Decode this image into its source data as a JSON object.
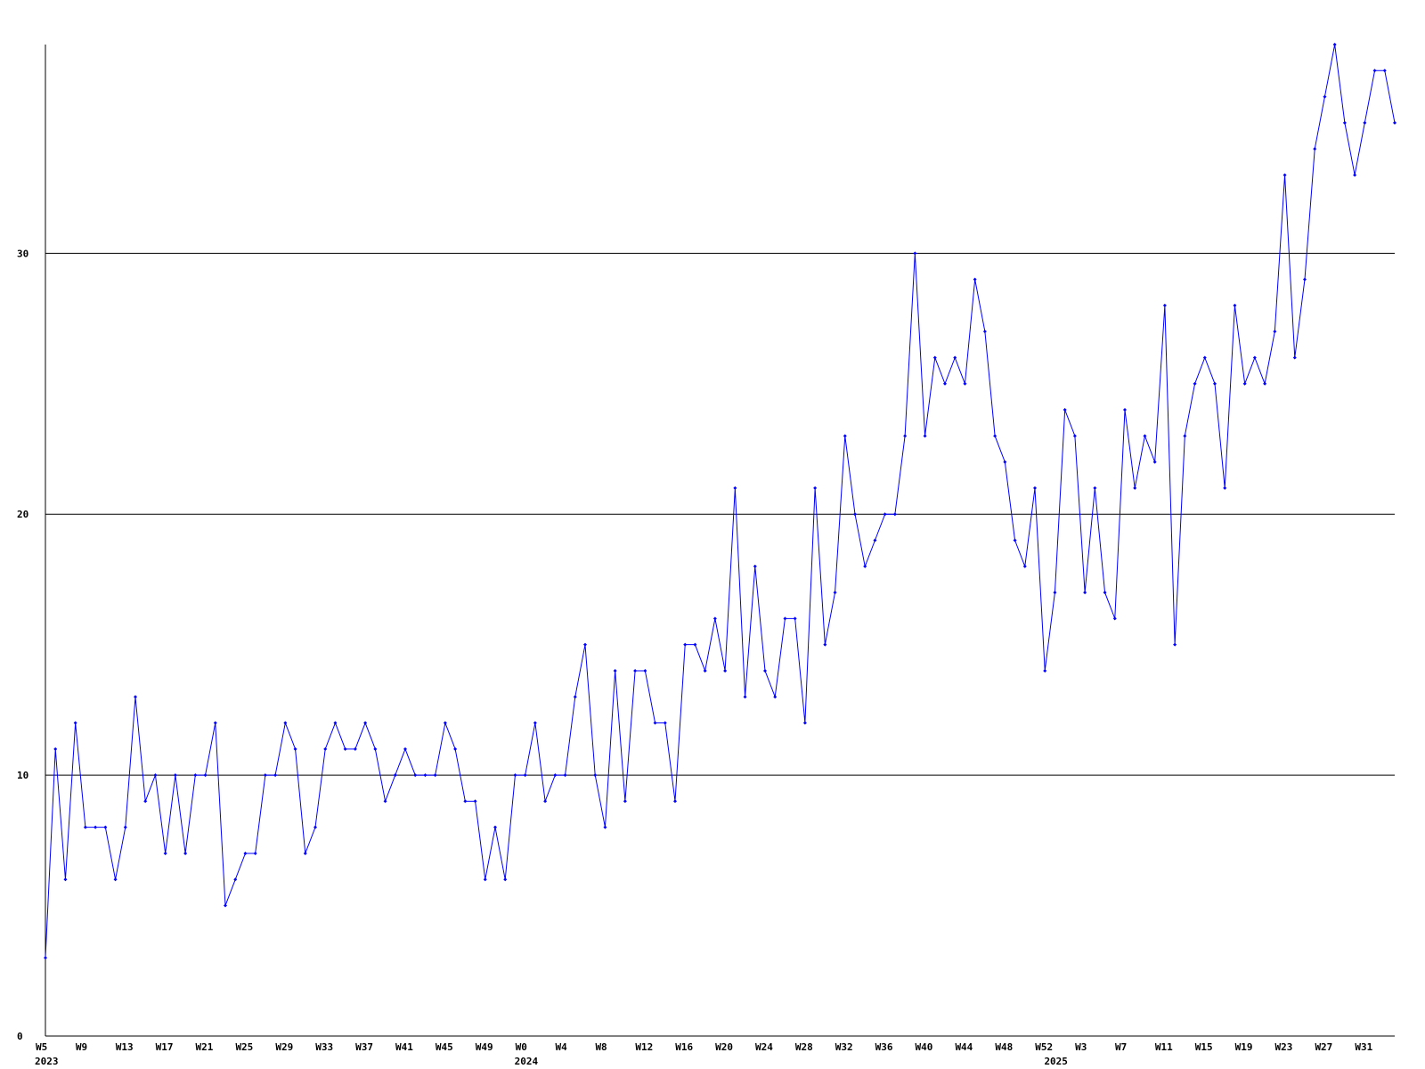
{
  "chart_data": {
    "type": "line",
    "title": "",
    "xlabel": "",
    "ylabel": "",
    "ylim": [
      0,
      38
    ],
    "yticks": [
      0,
      10,
      20,
      30
    ],
    "grid": true,
    "legend": "none",
    "colors": {
      "line": "#0000ff",
      "grid": "#000000",
      "axis": "#000000",
      "background": "#ffffff"
    },
    "x_start": "2023-W05",
    "x_tick_labels": [
      {
        "label": "W5",
        "week_index": 0
      },
      {
        "label": "W9",
        "week_index": 4
      },
      {
        "label": "W13",
        "week_index": 8
      },
      {
        "label": "W17",
        "week_index": 12
      },
      {
        "label": "W21",
        "week_index": 16
      },
      {
        "label": "W25",
        "week_index": 20
      },
      {
        "label": "W29",
        "week_index": 24
      },
      {
        "label": "W33",
        "week_index": 28
      },
      {
        "label": "W37",
        "week_index": 32
      },
      {
        "label": "W41",
        "week_index": 36
      },
      {
        "label": "W45",
        "week_index": 40
      },
      {
        "label": "W49",
        "week_index": 44
      },
      {
        "label": "W0",
        "week_index": 48
      },
      {
        "label": "W4",
        "week_index": 52
      },
      {
        "label": "W8",
        "week_index": 56
      },
      {
        "label": "W12",
        "week_index": 60
      },
      {
        "label": "W16",
        "week_index": 64
      },
      {
        "label": "W20",
        "week_index": 68
      },
      {
        "label": "W24",
        "week_index": 72
      },
      {
        "label": "W28",
        "week_index": 76
      },
      {
        "label": "W32",
        "week_index": 80
      },
      {
        "label": "W36",
        "week_index": 84
      },
      {
        "label": "W40",
        "week_index": 88
      },
      {
        "label": "W44",
        "week_index": 92
      },
      {
        "label": "W48",
        "week_index": 96
      },
      {
        "label": "W52",
        "week_index": 100
      },
      {
        "label": "W3",
        "week_index": 104
      },
      {
        "label": "W7",
        "week_index": 108
      },
      {
        "label": "W11",
        "week_index": 112
      },
      {
        "label": "W15",
        "week_index": 116
      },
      {
        "label": "W19",
        "week_index": 120
      },
      {
        "label": "W23",
        "week_index": 124
      },
      {
        "label": "W27",
        "week_index": 128
      },
      {
        "label": "W31",
        "week_index": 132
      }
    ],
    "year_labels": [
      {
        "label": "2023",
        "week_index": 0
      },
      {
        "label": "2024",
        "week_index": 48
      },
      {
        "label": "2025",
        "week_index": 101
      }
    ],
    "series": [
      {
        "color": "#0000ff",
        "values": [
          3,
          11,
          6,
          12,
          8,
          8,
          8,
          6,
          8,
          13,
          9,
          10,
          7,
          10,
          7,
          10,
          10,
          12,
          5,
          6,
          7,
          7,
          10,
          10,
          12,
          11,
          7,
          8,
          11,
          12,
          11,
          11,
          12,
          11,
          9,
          10,
          11,
          10,
          10,
          10,
          12,
          11,
          9,
          9,
          6,
          8,
          6,
          10,
          10,
          12,
          9,
          10,
          10,
          13,
          15,
          10,
          8,
          14,
          9,
          14,
          14,
          12,
          12,
          9,
          15,
          15,
          14,
          16,
          14,
          21,
          13,
          18,
          14,
          13,
          16,
          16,
          12,
          21,
          15,
          17,
          23,
          20,
          18,
          19,
          20,
          20,
          23,
          30,
          23,
          26,
          25,
          26,
          25,
          29,
          27,
          23,
          22,
          19,
          18,
          21,
          14,
          17,
          24,
          23,
          17,
          21,
          17,
          16,
          24,
          21,
          23,
          22,
          28,
          15,
          23,
          25,
          26,
          25,
          21,
          28,
          25,
          26,
          25,
          27,
          33,
          26,
          29,
          34,
          36,
          38,
          35,
          33,
          35,
          37,
          37,
          35
        ]
      }
    ]
  }
}
